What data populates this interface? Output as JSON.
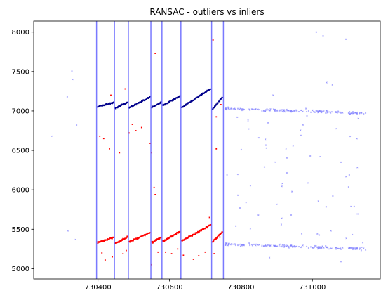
{
  "chart_data": {
    "type": "scatter",
    "title": "RANSAC - outliers vs inliers",
    "xlabel": "",
    "ylabel": "",
    "xlim": [
      730220,
      731190
    ],
    "ylim": [
      4870,
      8140
    ],
    "x_ticks": [
      730400,
      730600,
      730800,
      731000
    ],
    "x_tick_labels": [
      "730400",
      "730600",
      "730800",
      "731000"
    ],
    "y_ticks": [
      5000,
      5500,
      6000,
      6500,
      7000,
      7500,
      8000
    ],
    "y_tick_labels": [
      "5000",
      "5500",
      "6000",
      "6500",
      "7000",
      "7500",
      "8000"
    ],
    "grid": false,
    "legend": "none",
    "colors": {
      "inliers": "#00008b",
      "outliers": "#ff0000",
      "unclassified": "#8080ff",
      "boundaries": "#6b6bff"
    },
    "boundaries_x": [
      730396,
      730446,
      730485,
      730548,
      730579,
      730632,
      730718,
      730751
    ],
    "segments": [
      {
        "x": [
          730396,
          730446
        ],
        "upper": [
          7055,
          7105
        ],
        "lower": [
          5330,
          5395
        ]
      },
      {
        "x": [
          730446,
          730485
        ],
        "upper": [
          7035,
          7110
        ],
        "lower": [
          5320,
          5400
        ]
      },
      {
        "x": [
          730485,
          730548
        ],
        "upper": [
          7040,
          7175
        ],
        "lower": [
          5340,
          5460
        ]
      },
      {
        "x": [
          730548,
          730579
        ],
        "upper": [
          7040,
          7110
        ],
        "lower": [
          5330,
          5400
        ]
      },
      {
        "x": [
          730579,
          730632
        ],
        "upper": [
          7065,
          7190
        ],
        "lower": [
          5345,
          5470
        ]
      },
      {
        "x": [
          730632,
          730718
        ],
        "upper": [
          7040,
          7285
        ],
        "lower": [
          5350,
          5555
        ]
      },
      {
        "x": [
          730718,
          730751
        ],
        "upper": [
          7020,
          7180
        ],
        "lower": [
          5340,
          5470
        ]
      }
    ],
    "outlier_points": [
      [
        730405,
        6680
      ],
      [
        730416,
        6650
      ],
      [
        730432,
        6520
      ],
      [
        730436,
        7200
      ],
      [
        730411,
        5200
      ],
      [
        730420,
        5110
      ],
      [
        730440,
        5150
      ],
      [
        730460,
        6470
      ],
      [
        730476,
        7280
      ],
      [
        730470,
        5190
      ],
      [
        730479,
        5230
      ],
      [
        730487,
        6720
      ],
      [
        730496,
        6830
      ],
      [
        730506,
        6750
      ],
      [
        730522,
        6790
      ],
      [
        730546,
        6590
      ],
      [
        730550,
        6470
      ],
      [
        730560,
        7730
      ],
      [
        730557,
        6030
      ],
      [
        730560,
        5940
      ],
      [
        730550,
        5050
      ],
      [
        730568,
        5210
      ],
      [
        730589,
        5210
      ],
      [
        730606,
        5190
      ],
      [
        730623,
        5250
      ],
      [
        730639,
        5170
      ],
      [
        730667,
        5120
      ],
      [
        730682,
        5165
      ],
      [
        730700,
        5210
      ],
      [
        730712,
        5650
      ],
      [
        730722,
        7900
      ],
      [
        730731,
        6925
      ],
      [
        730731,
        6520
      ],
      [
        730744,
        7080
      ],
      [
        730741,
        5400
      ],
      [
        730725,
        5190
      ]
    ],
    "unclassified_bands": [
      {
        "x": [
          730755,
          731150
        ],
        "upper": [
          7030,
          6970
        ],
        "lower": [
          5310,
          5250
        ]
      }
    ],
    "unclassified_points": [
      [
        730270,
        6680
      ],
      [
        730314,
        7180
      ],
      [
        730327,
        7510
      ],
      [
        730329,
        7400
      ],
      [
        730340,
        6820
      ],
      [
        730316,
        5480
      ],
      [
        730337,
        5370
      ],
      [
        730790,
        6920
      ],
      [
        730801,
        6510
      ],
      [
        730820,
        6880
      ],
      [
        730850,
        6660
      ],
      [
        730866,
        6290
      ],
      [
        730876,
        6850
      ],
      [
        730890,
        7200
      ],
      [
        730916,
        6080
      ],
      [
        730946,
        6560
      ],
      [
        730982,
        7030
      ],
      [
        730994,
        6430
      ],
      [
        731022,
        6420
      ],
      [
        731052,
        5480
      ],
      [
        731056,
        7330
      ],
      [
        731080,
        6350
      ],
      [
        731094,
        7910
      ],
      [
        731141,
        5330
      ],
      [
        731030,
        7950
      ],
      [
        731011,
        8000
      ],
      [
        731040,
        7360
      ],
      [
        730968,
        6690
      ],
      [
        730880,
        5140
      ],
      [
        731080,
        5090
      ],
      [
        730913,
        5560
      ]
    ]
  }
}
